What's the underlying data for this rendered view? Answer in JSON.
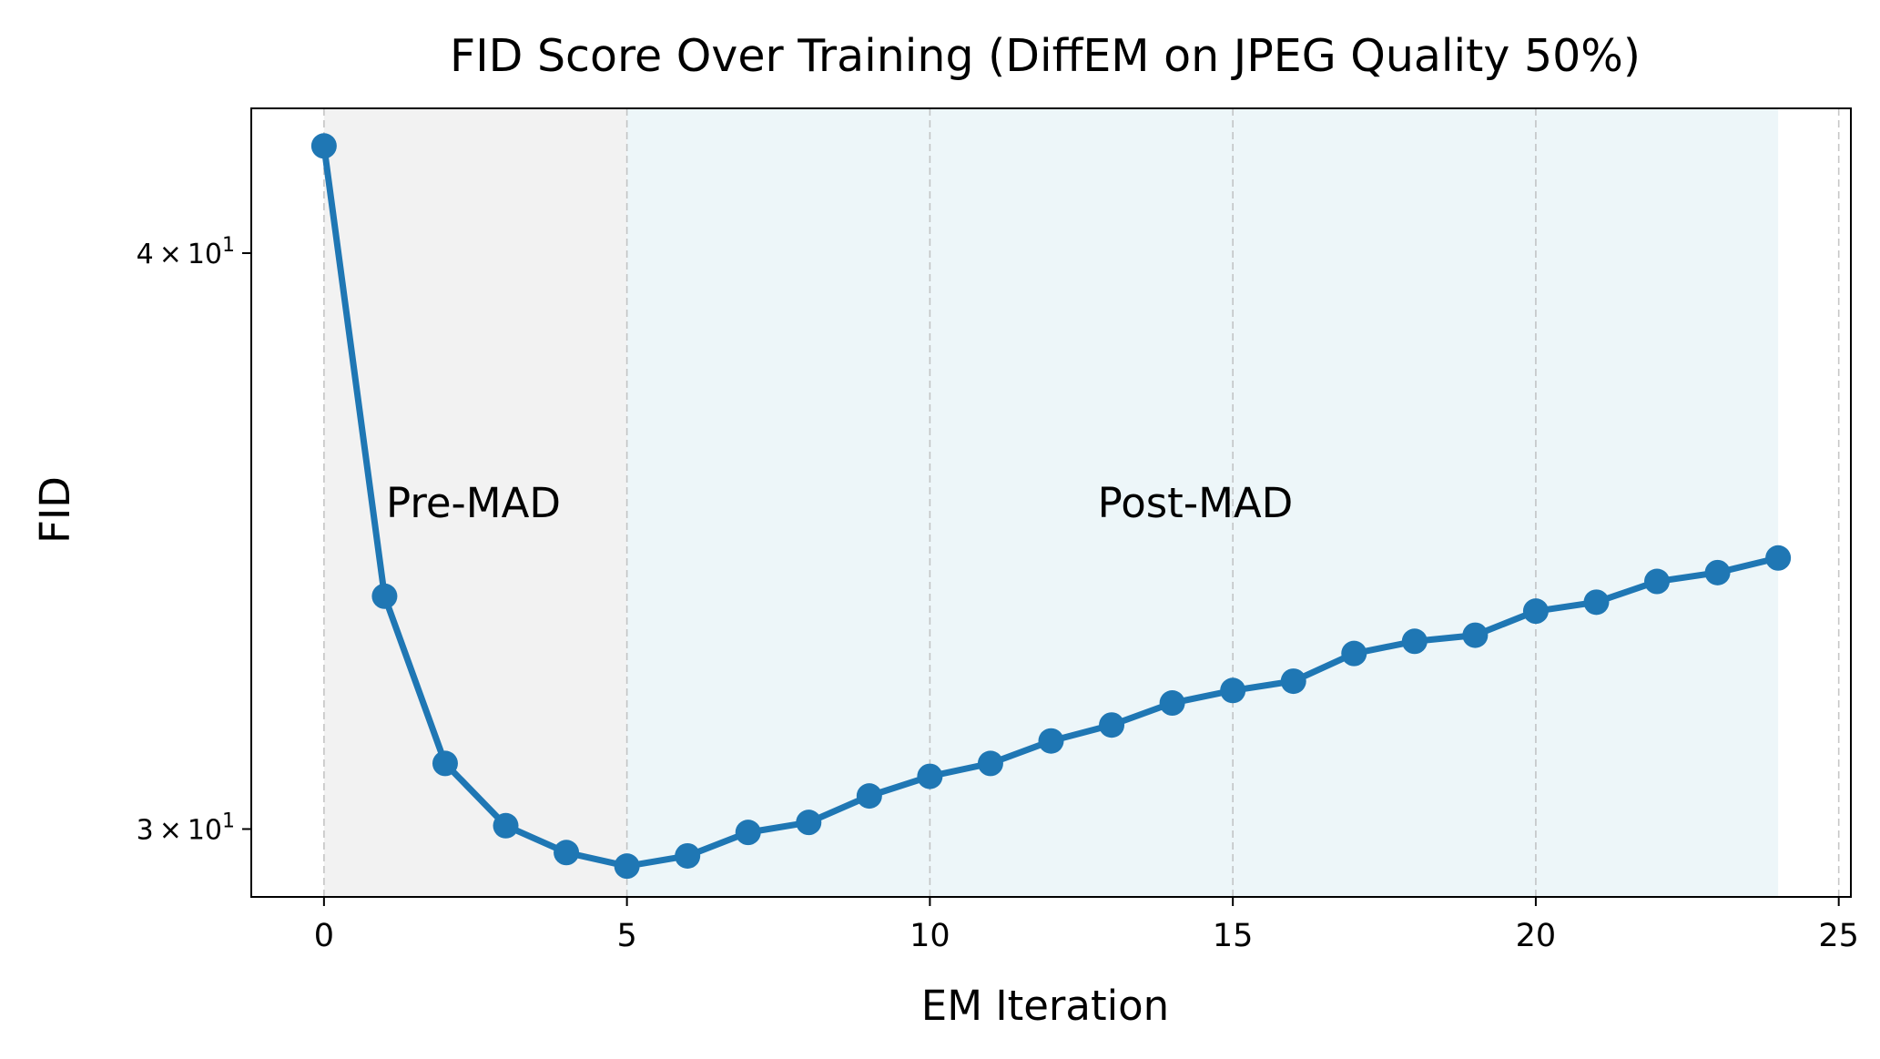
{
  "chart_data": {
    "type": "line",
    "title": "FID Score Over Training (DiffEM on JPEG Quality 50%)",
    "xlabel": "EM Iteration",
    "ylabel": "FID",
    "yscale": "log",
    "xlim": [
      -1.2,
      25.2
    ],
    "ylim": [
      29.0,
      43.0
    ],
    "xticks": [
      0,
      5,
      10,
      15,
      20,
      25
    ],
    "xtick_labels": [
      "0",
      "5",
      "10",
      "15",
      "20",
      "25"
    ],
    "yticks": [
      {
        "value": 40,
        "mantissa": "4",
        "base": "10",
        "exponent": "1"
      },
      {
        "value": 30,
        "mantissa": "3",
        "base": "10",
        "exponent": "1"
      }
    ],
    "grid": "vertical dashed",
    "series": [
      {
        "name": "FID",
        "color": "#1f77b4",
        "x": [
          0,
          1,
          2,
          3,
          4,
          5,
          6,
          7,
          8,
          9,
          10,
          11,
          12,
          13,
          14,
          15,
          16,
          17,
          18,
          19,
          20,
          21,
          22,
          23,
          24
        ],
        "values": [
          42.2,
          33.7,
          31.0,
          30.05,
          29.65,
          29.45,
          29.6,
          29.95,
          30.1,
          30.5,
          30.8,
          31.0,
          31.35,
          31.6,
          31.95,
          32.15,
          32.3,
          32.75,
          32.95,
          33.05,
          33.45,
          33.6,
          33.95,
          34.1,
          34.35
        ]
      }
    ],
    "regions": [
      {
        "label": "Pre-MAD",
        "x_start": 0,
        "x_end": 5,
        "color": "#f2f2f2"
      },
      {
        "label": "Post-MAD",
        "x_start": 5,
        "x_end": 24,
        "color": "#edf6f9"
      }
    ]
  }
}
